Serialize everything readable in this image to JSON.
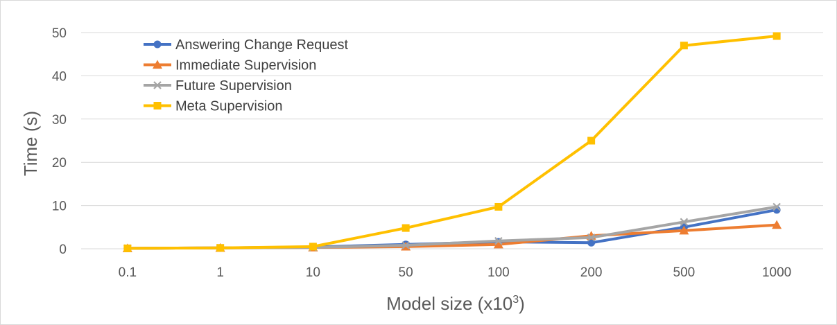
{
  "chart_data": {
    "type": "line",
    "title": "",
    "xlabel": "Model size (x10",
    "xlabel_sup": "3",
    "xlabel_suffix": ")",
    "ylabel": "Time (s)",
    "categories": [
      "0.1",
      "1",
      "10",
      "50",
      "100",
      "200",
      "500",
      "1000"
    ],
    "ylim": [
      0,
      50
    ],
    "yticks": [
      0,
      10,
      20,
      30,
      40,
      50
    ],
    "grid": true,
    "legend_position": "top-left",
    "series": [
      {
        "name": "Answering Change Request",
        "color": "#4472c4",
        "marker": "circle",
        "values": [
          0.1,
          0.2,
          0.4,
          1.0,
          1.6,
          1.4,
          5.0,
          9.0
        ]
      },
      {
        "name": "Immediate Supervision",
        "color": "#ed7d31",
        "marker": "triangle",
        "values": [
          0.1,
          0.2,
          0.3,
          0.5,
          1.0,
          3.0,
          4.2,
          5.5
        ]
      },
      {
        "name": "Future Supervision",
        "color": "#a5a5a5",
        "marker": "x",
        "values": [
          0.1,
          0.2,
          0.3,
          0.8,
          1.8,
          2.6,
          6.2,
          9.7
        ]
      },
      {
        "name": "Meta Supervision",
        "color": "#ffc000",
        "marker": "square",
        "values": [
          0.1,
          0.2,
          0.5,
          4.8,
          9.7,
          25.0,
          47.0,
          49.2
        ]
      }
    ]
  }
}
